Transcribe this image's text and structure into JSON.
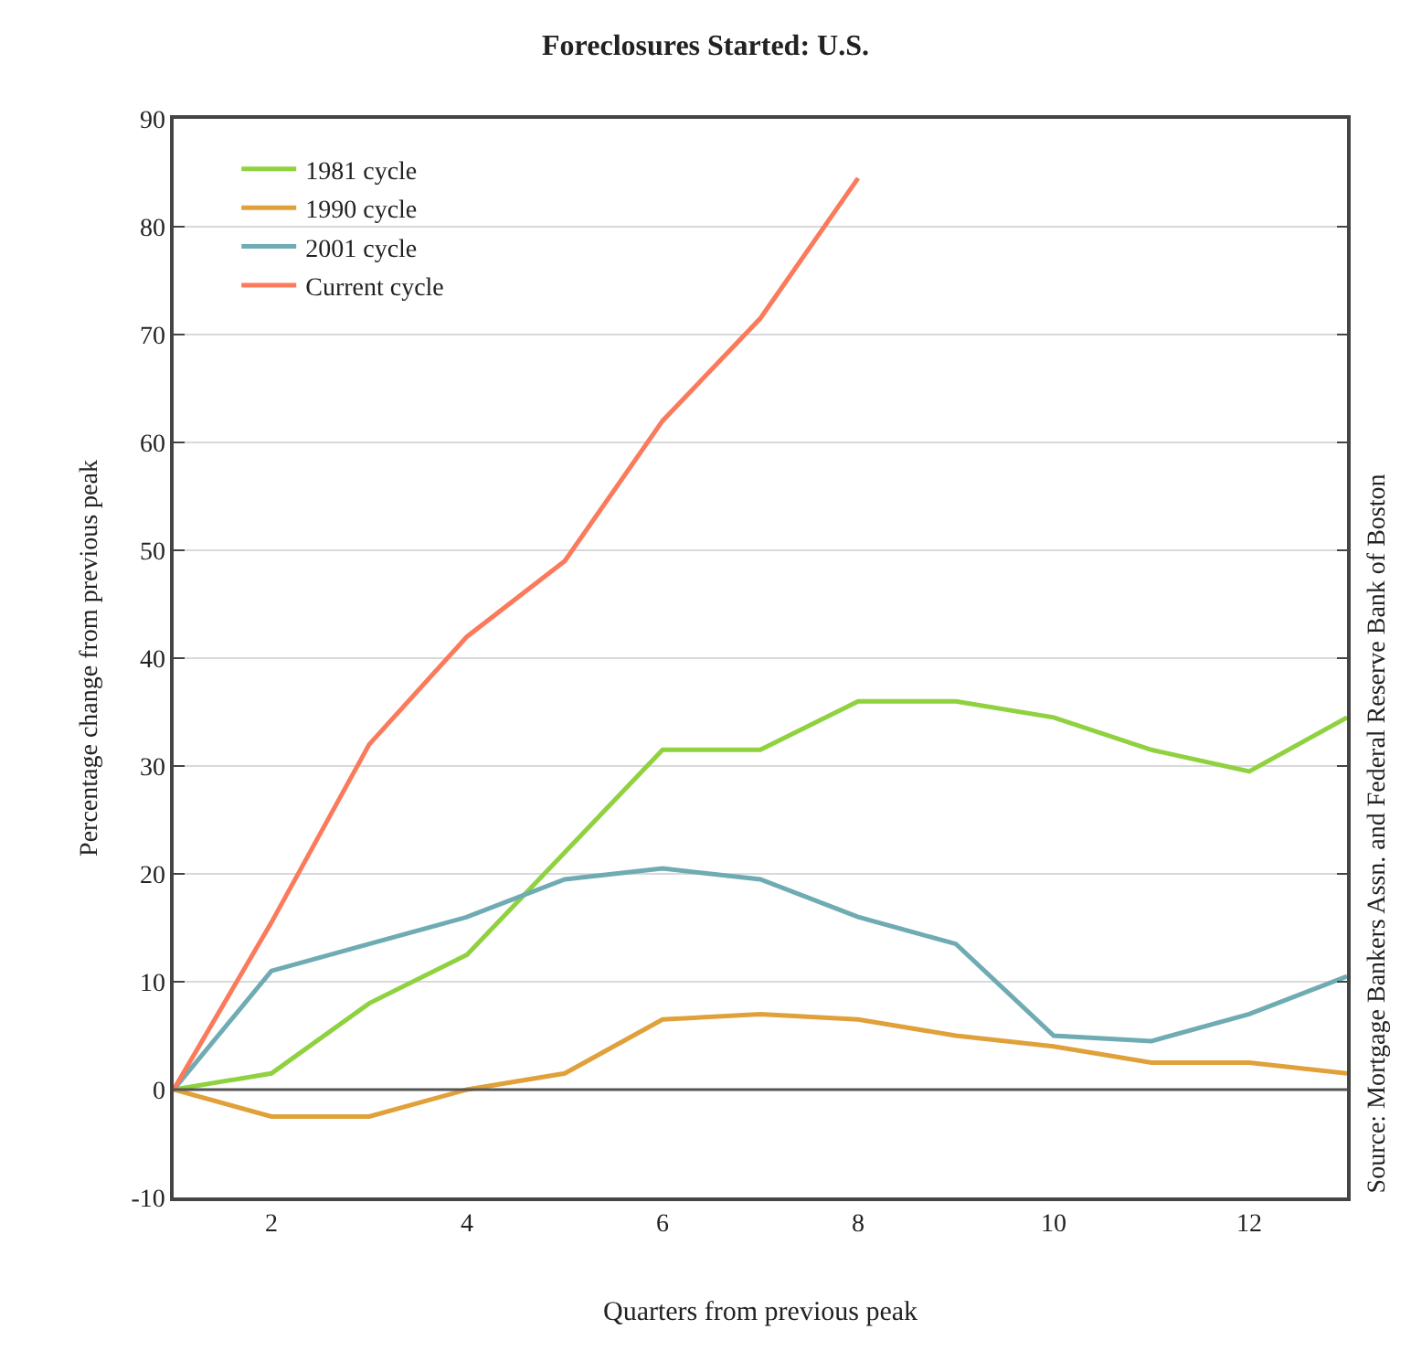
{
  "chart_data": {
    "type": "line",
    "title": "Foreclosures Started: U.S.",
    "xlabel": "Quarters from previous peak",
    "ylabel": "Percentage change from previous peak",
    "x": [
      1,
      2,
      3,
      4,
      5,
      6,
      7,
      8,
      9,
      10,
      11,
      12,
      13
    ],
    "series": [
      {
        "name": "1981 cycle",
        "color": "#8fd13f",
        "values": [
          0,
          1.5,
          8,
          12.5,
          22,
          31.5,
          31.5,
          36,
          36,
          34.5,
          31.5,
          29.5,
          34.5
        ]
      },
      {
        "name": "1990 cycle",
        "color": "#e0a03a",
        "values": [
          0,
          -2.5,
          -2.5,
          0,
          1.5,
          6.5,
          7,
          6.5,
          5,
          4,
          2.5,
          2.5,
          1.5
        ]
      },
      {
        "name": "2001 cycle",
        "color": "#6fabb3",
        "values": [
          0,
          11,
          13.5,
          16,
          19.5,
          20.5,
          19.5,
          16,
          13.5,
          5,
          4.5,
          7,
          10.5
        ]
      },
      {
        "name": "Current cycle",
        "color": "#fb7a5c",
        "values": [
          0,
          15.5,
          32,
          42,
          49,
          62,
          71.5,
          84.5,
          null,
          null,
          null,
          null,
          null
        ]
      }
    ],
    "xlim": [
      1,
      13
    ],
    "xticks": [
      2,
      4,
      6,
      8,
      10,
      12
    ],
    "ylim": [
      -10,
      90
    ],
    "yticks": [
      -10,
      0,
      10,
      20,
      30,
      40,
      50,
      60,
      70,
      80,
      90
    ],
    "ref_lines": [
      {
        "axis": "y",
        "value": 0,
        "color": "#555555"
      }
    ],
    "grid": "y",
    "legend": "top left",
    "marker": "none",
    "line_style": "solid",
    "annotations": [
      "Source: Mortgage Bankers Assn. and Federal Reserve Bank of Boston"
    ]
  }
}
